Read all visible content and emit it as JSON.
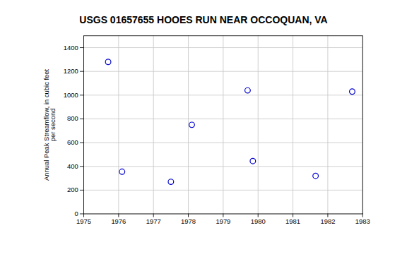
{
  "chart_data": {
    "type": "scatter",
    "title": "USGS 01657655 HOOES RUN NEAR OCCOQUAN, VA",
    "ylabel": "Annual Peak Streamflow, in cubic feet\nper second",
    "x": [
      1975.7,
      1976.1,
      1977.5,
      1978.1,
      1979.7,
      1979.85,
      1981.65,
      1982.7
    ],
    "values": [
      1280,
      355,
      270,
      750,
      1040,
      445,
      320,
      1030
    ],
    "xlim": [
      1975,
      1983
    ],
    "ylim": [
      0,
      1500
    ],
    "xticks": [
      1975,
      1976,
      1977,
      1978,
      1979,
      1980,
      1981,
      1982,
      1983
    ],
    "yticks": [
      0,
      200,
      400,
      600,
      800,
      1000,
      1200,
      1400
    ],
    "color": "#0000CC",
    "marker": "open_circle",
    "grid": true
  }
}
